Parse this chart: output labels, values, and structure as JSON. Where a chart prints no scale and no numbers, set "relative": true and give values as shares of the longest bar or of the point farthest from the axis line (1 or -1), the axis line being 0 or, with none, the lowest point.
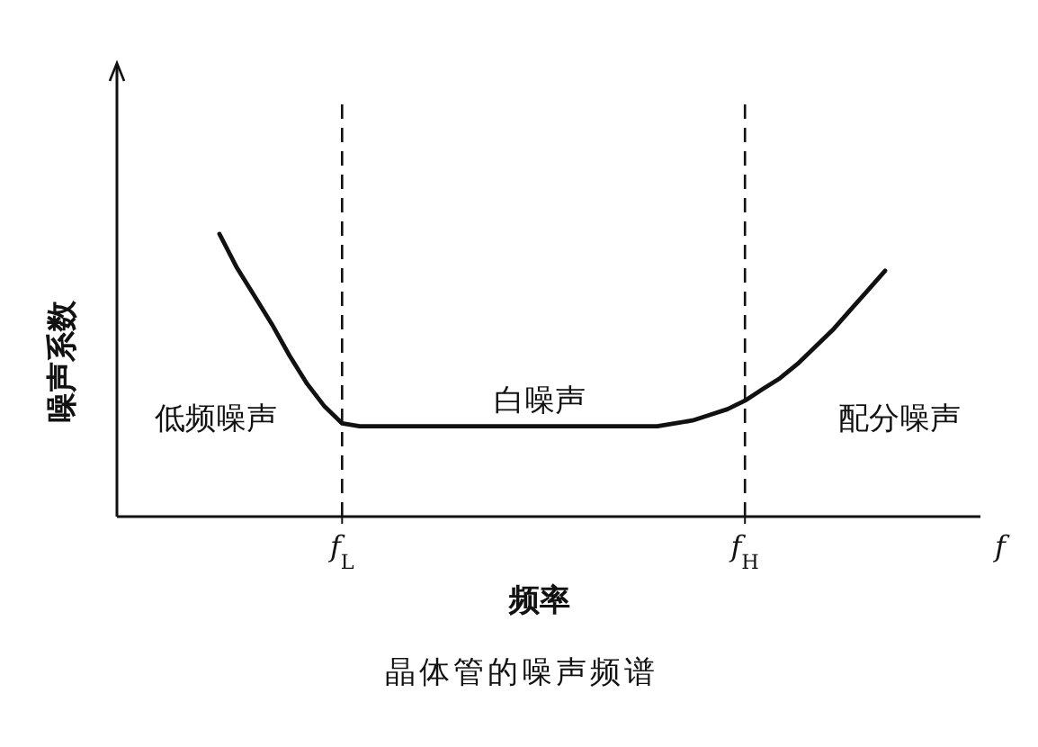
{
  "chart_data": {
    "type": "line",
    "relative": true,
    "title": "晶体管的噪声频谱",
    "xlabel": "频率",
    "ylabel": "噪声系数",
    "categories": [
      null,
      null,
      null,
      null,
      null,
      null,
      null,
      "f$_{L}$",
      null,
      null,
      null,
      null,
      null,
      null,
      null,
      null,
      null,
      null,
      null,
      null,
      null,
      null,
      null,
      null,
      null,
      null,
      null,
      null,
      null,
      null,
      "f$_{H}$",
      null,
      null,
      null,
      null,
      null,
      null,
      null,
      null
    ],
    "series": [
      {
        "color": "#111111",
        "line_style": "solid",
        "values": [
          1.0,
          0.88,
          0.78,
          0.68,
          0.57,
          0.47,
          0.39,
          0.33,
          0.32,
          0.32,
          0.32,
          0.32,
          0.32,
          0.32,
          0.32,
          0.32,
          0.32,
          0.32,
          0.32,
          0.32,
          0.32,
          0.32,
          0.32,
          0.32,
          0.32,
          0.32,
          0.33,
          0.34,
          0.36,
          0.38,
          0.41,
          0.45,
          0.49,
          0.54,
          0.6,
          0.66,
          0.73,
          0.8,
          0.87
        ]
      }
    ],
    "ref_lines": [
      {
        "axis": "x",
        "value": "f$_{L}$",
        "line_style": "dashed",
        "color": "#111111"
      },
      {
        "axis": "x",
        "value": "f$_{H}$",
        "line_style": "dashed",
        "color": "#111111"
      }
    ],
    "annotations": [
      "低频噪声",
      "白噪声",
      "配分噪声",
      "f"
    ],
    "marker": "none"
  }
}
